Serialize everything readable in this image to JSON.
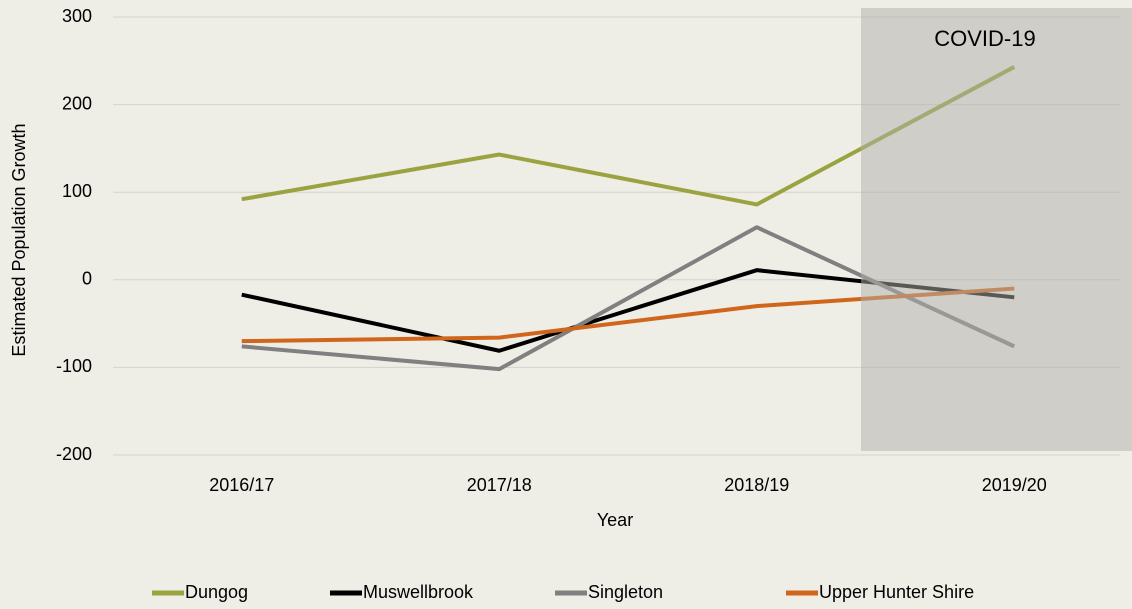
{
  "chart_data": {
    "type": "line",
    "y_label": "Estimated Population Growth",
    "x_label": "Year",
    "annotation": "COVID-19",
    "categories": [
      "2016/17",
      "2017/18",
      "2018/19",
      "2019/20"
    ],
    "series": [
      {
        "name": "Dungog",
        "color": "#9aa33f",
        "values": [
          92,
          143,
          86,
          243
        ]
      },
      {
        "name": "Muswellbrook",
        "color": "#000000",
        "values": [
          -17,
          -81,
          11,
          -20
        ]
      },
      {
        "name": "Singleton",
        "color": "#808080",
        "values": [
          -76,
          -102,
          60,
          -76
        ]
      },
      {
        "name": "Upper Hunter Shire",
        "color": "#d0661c",
        "values": [
          -70,
          -66,
          -30,
          -10
        ]
      }
    ],
    "ylim": [
      -200,
      300
    ],
    "yticks": [
      -200,
      -100,
      0,
      100,
      200,
      300
    ],
    "grid": true
  }
}
